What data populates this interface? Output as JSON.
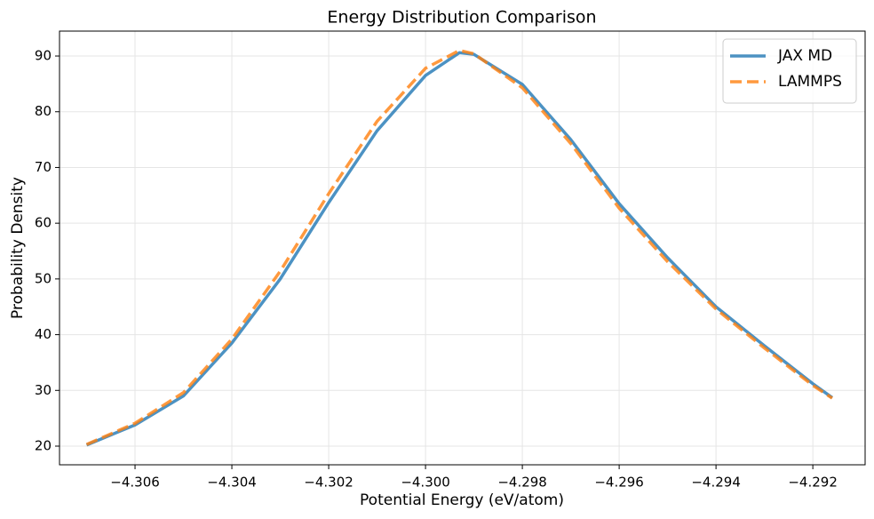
{
  "chart_data": {
    "type": "line",
    "title": "Energy Distribution Comparison",
    "xlabel": "Potential Energy (eV/atom)",
    "ylabel": "Probability Density",
    "x": [
      -4.307,
      -4.306,
      -4.305,
      -4.304,
      -4.303,
      -4.302,
      -4.301,
      -4.3,
      -4.2993,
      -4.299,
      -4.298,
      -4.297,
      -4.296,
      -4.295,
      -4.294,
      -4.293,
      -4.292,
      -4.2916
    ],
    "series": [
      {
        "name": "JAX MD",
        "color": "#1f77b4",
        "linestyle": "solid",
        "values": [
          20.2,
          23.8,
          29.0,
          38.5,
          50.0,
          63.7,
          76.6,
          86.5,
          90.6,
          90.3,
          84.9,
          75.0,
          63.5,
          53.8,
          45.0,
          38.0,
          31.2,
          28.7
        ]
      },
      {
        "name": "LAMMPS",
        "color": "#ff7f0e",
        "linestyle": "dashed",
        "values": [
          20.3,
          24.1,
          29.6,
          39.2,
          51.4,
          65.3,
          78.3,
          87.8,
          91.0,
          90.4,
          84.3,
          74.3,
          62.7,
          53.1,
          44.6,
          37.6,
          30.9,
          28.6
        ]
      }
    ],
    "xlim": [
      -4.30756,
      -4.29092
    ],
    "ylim": [
      16.65,
      94.47
    ],
    "xticks": [
      {
        "value": -4.306,
        "label": "−4.306"
      },
      {
        "value": -4.304,
        "label": "−4.304"
      },
      {
        "value": -4.302,
        "label": "−4.302"
      },
      {
        "value": -4.3,
        "label": "−4.300"
      },
      {
        "value": -4.298,
        "label": "−4.298"
      },
      {
        "value": -4.296,
        "label": "−4.296"
      },
      {
        "value": -4.294,
        "label": "−4.294"
      },
      {
        "value": -4.292,
        "label": "−4.292"
      }
    ],
    "yticks": [
      20,
      30,
      40,
      50,
      60,
      70,
      80,
      90
    ],
    "grid": true,
    "legend": "upper right"
  }
}
